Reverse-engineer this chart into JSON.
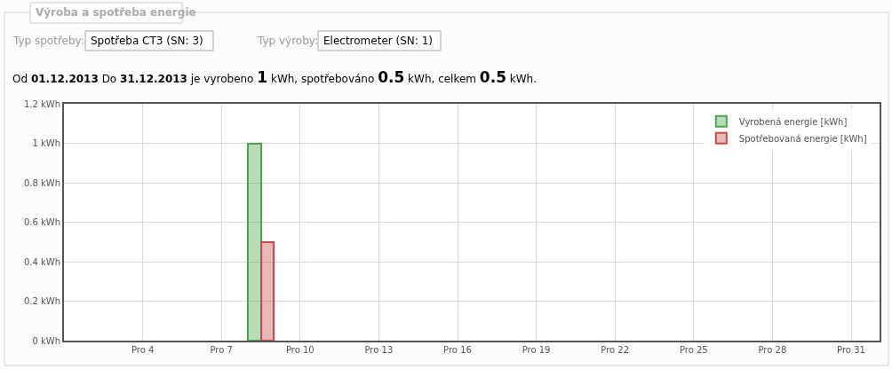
{
  "chart_data": {
    "type": "bar",
    "title": "Výroba a spotřeba energie",
    "annotations": [
      "Typ spotřeby:",
      "Spotřeba CT3 (SN: 3)",
      "Typ výroby:",
      "Electrometer (SN: 1)",
      "Od 01.12.2013 Do 31.12.2013 je vyrobeno 1 kWh, spotřebováno 0.5 kWh, celkem 0.5 kWh."
    ],
    "series": [
      {
        "name": "Vyrobená energie [kWh]",
        "color": "#4da74d",
        "x": [
          "2013-12-08T06:00"
        ],
        "values": [
          1
        ]
      },
      {
        "name": "Spotřebovaná energie [kWh]",
        "color": "#cb4b4b",
        "x": [
          "2013-12-08T18:00"
        ],
        "values": [
          0.5
        ]
      }
    ],
    "xlim": [
      "2013-12-01",
      "2014-01-01T02:00"
    ],
    "xticks": [
      {
        "value": "2013-12-04",
        "label": "Pro 4"
      },
      {
        "value": "2013-12-07",
        "label": "Pro 7"
      },
      {
        "value": "2013-12-10",
        "label": "Pro 10"
      },
      {
        "value": "2013-12-13",
        "label": "Pro 13"
      },
      {
        "value": "2013-12-16",
        "label": "Pro 16"
      },
      {
        "value": "2013-12-19",
        "label": "Pro 19"
      },
      {
        "value": "2013-12-22",
        "label": "Pro 22"
      },
      {
        "value": "2013-12-25",
        "label": "Pro 25"
      },
      {
        "value": "2013-12-28",
        "label": "Pro 28"
      },
      {
        "value": "2013-12-31",
        "label": "Pro 31"
      }
    ],
    "ylim": [
      0,
      1.2
    ],
    "yticks": [
      {
        "value": 0,
        "label": "0 kWh"
      },
      {
        "value": 0.2,
        "label": "0.2 kWh"
      },
      {
        "value": 0.4,
        "label": "0.4 kWh"
      },
      {
        "value": 0.6,
        "label": "0.6 kWh"
      },
      {
        "value": 0.8,
        "label": "0.8 kWh"
      },
      {
        "value": 1,
        "label": "1 kWh"
      },
      {
        "value": 1.2,
        "label": "1.2 kWh"
      }
    ],
    "grid": true,
    "legend": "top right"
  }
}
